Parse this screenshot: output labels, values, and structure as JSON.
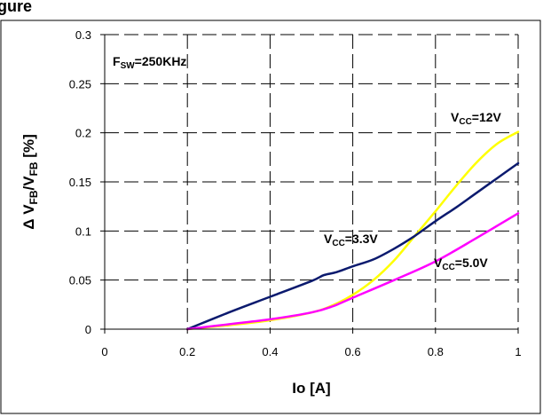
{
  "figure": {
    "caption_fragment": "igure"
  },
  "chart_data": {
    "type": "line",
    "xlabel": "Io [A]",
    "ylabel": {
      "prefix": "Δ V",
      "sub1": "FB",
      "mid": "/V",
      "sub2": "FB",
      "suffix": " [%]"
    },
    "xlim": [
      0,
      1
    ],
    "ylim": [
      0,
      0.3
    ],
    "x_ticks": [
      "0",
      "0.2",
      "0.4",
      "0.6",
      "0.8",
      "1"
    ],
    "y_ticks": [
      "0",
      "0.05",
      "0.1",
      "0.15",
      "0.2",
      "0.25",
      "0.3"
    ],
    "grid": "dashed",
    "annotations": {
      "fsw": {
        "main": "F",
        "sub": "SW",
        "rest": "=250KHz"
      }
    },
    "series": [
      {
        "name": "VCC=3.3V",
        "label": {
          "main": "V",
          "sub": "CC",
          "rest": "=3.3V"
        },
        "color": "#0b1a6e",
        "x": [
          0.2,
          0.3,
          0.4,
          0.5,
          0.53,
          0.56,
          0.6,
          0.65,
          0.7,
          0.75,
          0.8,
          0.85,
          0.9,
          0.95,
          1.0
        ],
        "y": [
          0.0,
          0.017,
          0.033,
          0.049,
          0.055,
          0.058,
          0.064,
          0.071,
          0.082,
          0.095,
          0.11,
          0.124,
          0.139,
          0.154,
          0.169
        ]
      },
      {
        "name": "VCC=12V",
        "label": {
          "main": "V",
          "sub": "CC",
          "rest": "=12V"
        },
        "color": "#ffff00",
        "x": [
          0.2,
          0.3,
          0.4,
          0.5,
          0.55,
          0.6,
          0.65,
          0.7,
          0.75,
          0.8,
          0.85,
          0.9,
          0.95,
          1.0
        ],
        "y": [
          0.0,
          0.004,
          0.009,
          0.017,
          0.024,
          0.035,
          0.05,
          0.07,
          0.095,
          0.12,
          0.146,
          0.17,
          0.189,
          0.201
        ]
      },
      {
        "name": "VCC=5.0V",
        "label": {
          "main": "V",
          "sub": "CC",
          "rest": "=5.0V"
        },
        "color": "#ff00ff",
        "x": [
          0.2,
          0.3,
          0.4,
          0.5,
          0.55,
          0.6,
          0.7,
          0.8,
          0.9,
          1.0
        ],
        "y": [
          0.0,
          0.005,
          0.01,
          0.017,
          0.023,
          0.032,
          0.05,
          0.069,
          0.093,
          0.118
        ]
      }
    ]
  }
}
